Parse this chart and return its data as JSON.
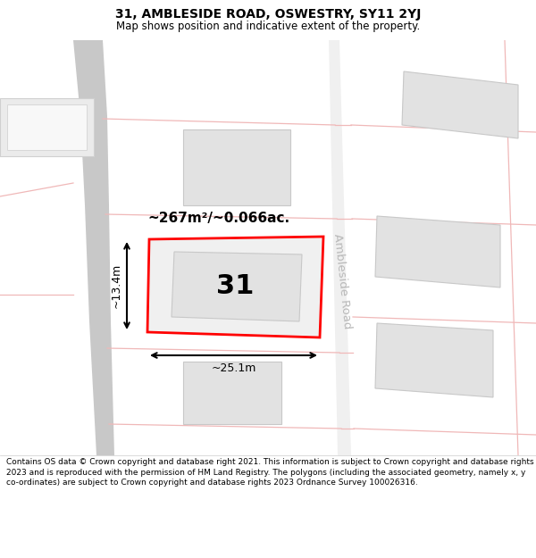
{
  "title_line1": "31, AMBLESIDE ROAD, OSWESTRY, SY11 2YJ",
  "title_line2": "Map shows position and indicative extent of the property.",
  "footer_text": "Contains OS data © Crown copyright and database right 2021. This information is subject to Crown copyright and database rights 2023 and is reproduced with the permission of HM Land Registry. The polygons (including the associated geometry, namely x, y co-ordinates) are subject to Crown copyright and database rights 2023 Ordnance Survey 100026316.",
  "bg_color": "#ffffff",
  "road_color_light": "#f0b8b8",
  "building_fill": "#e2e2e2",
  "building_edge": "#c8c8c8",
  "street_fill": "#f5f5f5",
  "property_edge": "#ff0000",
  "property_label": "31",
  "area_label": "~267m²/~0.066ac.",
  "width_label": "~25.1m",
  "height_label": "~13.4m",
  "road_label": "Ambleside Road",
  "title_fontsize": 10,
  "subtitle_fontsize": 8.5,
  "footer_fontsize": 6.5
}
